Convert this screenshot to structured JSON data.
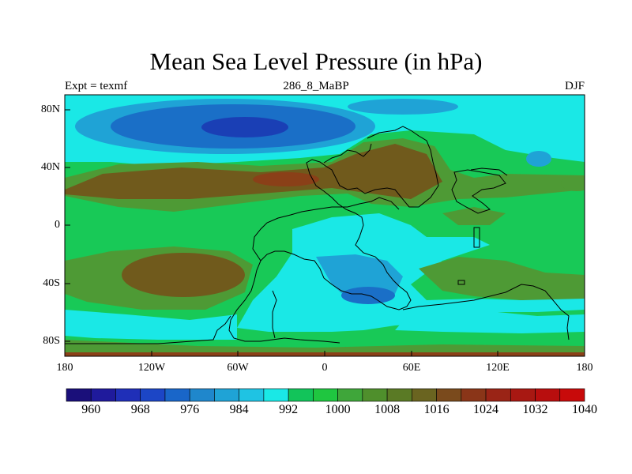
{
  "title": "Mean Sea Level Pressure (in hPa)",
  "left_label": "Expt = texmf",
  "center_label": "286_8_MaBP",
  "right_label": "DJF",
  "lon_labels": [
    "180",
    "120W",
    "60W",
    "0",
    "60E",
    "120E",
    "180"
  ],
  "lat_labels": [
    "80N",
    "40N",
    "0",
    "40S",
    "80S"
  ],
  "colorbar": {
    "labels": [
      "960",
      "968",
      "976",
      "984",
      "992",
      "1000",
      "1008",
      "1016",
      "1024",
      "1032",
      "1040"
    ],
    "colors": [
      "#1a0f7a",
      "#1f1a9c",
      "#1f2fb8",
      "#1c46c6",
      "#1966c9",
      "#1f87cc",
      "#1fa3d6",
      "#1fc3e3",
      "#1ae8e6",
      "#12c45a",
      "#1fc640",
      "#3fa63a",
      "#4f8f2c",
      "#5a7a25",
      "#6a6420",
      "#7a4a1c",
      "#8a3518",
      "#9a2416",
      "#a81812",
      "#b80e0e",
      "#c80a0a"
    ],
    "min": 960,
    "max": 1040
  },
  "legend_colors": {
    "p992": "#1fa3d6",
    "p1000": "#1ae8e6",
    "p1008": "#18c957",
    "p1016": "#4e9a35",
    "p1024": "#705a1c",
    "p1028": "#8a4018",
    "p984": "#1a6fc7",
    "p976": "#1a3fb5"
  }
}
